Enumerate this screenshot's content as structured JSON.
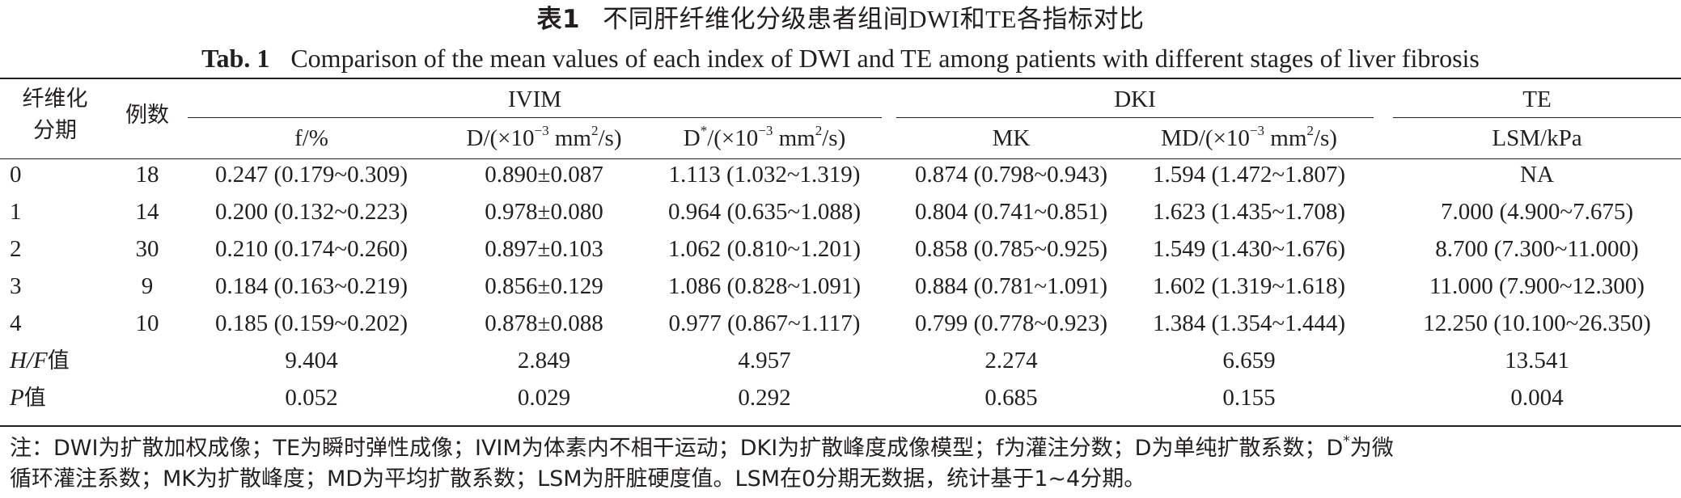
{
  "title_cn": {
    "tag": "表1",
    "text": "不同肝纤维化分级患者组间DWI和TE各指标对比"
  },
  "title_en": {
    "tag": "Tab. 1",
    "text": "Comparison of the mean values of each index of DWI and TE among patients with different stages of liver fibrosis"
  },
  "header": {
    "stage_line1": "纤维化",
    "stage_line2": "分期",
    "cases": "例数",
    "group_ivim": "IVIM",
    "group_dki": "DKI",
    "group_te": "TE",
    "col_f": "f/%",
    "col_d_pre": "D/(×10",
    "col_d_exp": "−3",
    "col_d_mid": " mm",
    "col_d_exp2": "2",
    "col_d_post": "/s)",
    "col_dstar_pre": "D",
    "col_dstar_sup": "*",
    "col_dstar_mid": "/(×10",
    "col_dstar_exp": "−3",
    "col_dstar_mm": " mm",
    "col_dstar_exp2": "2",
    "col_dstar_post": "/s)",
    "col_mk": "MK",
    "col_md_pre": "MD/(×10",
    "col_md_exp": "−3",
    "col_md_mid": " mm",
    "col_md_exp2": "2",
    "col_md_post": "/s)",
    "col_lsm": "LSM/kPa"
  },
  "rows": [
    {
      "stage": "0",
      "n": "18",
      "f": "0.247 (0.179~0.309)",
      "d": "0.890±0.087",
      "dstar": "1.113 (1.032~1.319)",
      "mk": "0.874 (0.798~0.943)",
      "md": "1.594 (1.472~1.807)",
      "lsm": "NA"
    },
    {
      "stage": "1",
      "n": "14",
      "f": "0.200 (0.132~0.223)",
      "d": "0.978±0.080",
      "dstar": "0.964 (0.635~1.088)",
      "mk": "0.804 (0.741~0.851)",
      "md": "1.623 (1.435~1.708)",
      "lsm": "7.000 (4.900~7.675)"
    },
    {
      "stage": "2",
      "n": "30",
      "f": "0.210 (0.174~0.260)",
      "d": "0.897±0.103",
      "dstar": "1.062 (0.810~1.201)",
      "mk": "0.858 (0.785~0.925)",
      "md": "1.549 (1.430~1.676)",
      "lsm": "8.700 (7.300~11.000)"
    },
    {
      "stage": "3",
      "n": "9",
      "f": "0.184 (0.163~0.219)",
      "d": "0.856±0.129",
      "dstar": "1.086 (0.828~1.091)",
      "mk": "0.884 (0.781~1.091)",
      "md": "1.602 (1.319~1.618)",
      "lsm": "11.000 (7.900~12.300)"
    },
    {
      "stage": "4",
      "n": "10",
      "f": "0.185 (0.159~0.202)",
      "d": "0.878±0.088",
      "dstar": "0.977 (0.867~1.117)",
      "mk": "0.799 (0.778~0.923)",
      "md": "1.384 (1.354~1.444)",
      "lsm": "12.250 (10.100~26.350)"
    }
  ],
  "stats": {
    "hf_label_italic": "H/F",
    "hf_label_suffix": "值",
    "hf": {
      "f": "9.404",
      "d": "2.849",
      "dstar": "4.957",
      "mk": "2.274",
      "md": "6.659",
      "lsm": "13.541"
    },
    "p_label_italic": "P",
    "p_label_suffix": "值",
    "p": {
      "f": "0.052",
      "d": "0.029",
      "dstar": "0.292",
      "mk": "0.685",
      "md": "0.155",
      "lsm": "0.004"
    }
  },
  "note": {
    "line1_pre": "注：DWI为扩散加权成像；TE为瞬时弹性成像；IVIM为体素内不相干运动；DKI为扩散峰度成像模型；f为灌注分数；D为单纯扩散系数；D",
    "line1_sup": "*",
    "line1_post": "为微",
    "line2": "循环灌注系数；MK为扩散峰度；MD为平均扩散系数；LSM为肝脏硬度值。LSM在0分期无数据，统计基于1~4分期。"
  }
}
